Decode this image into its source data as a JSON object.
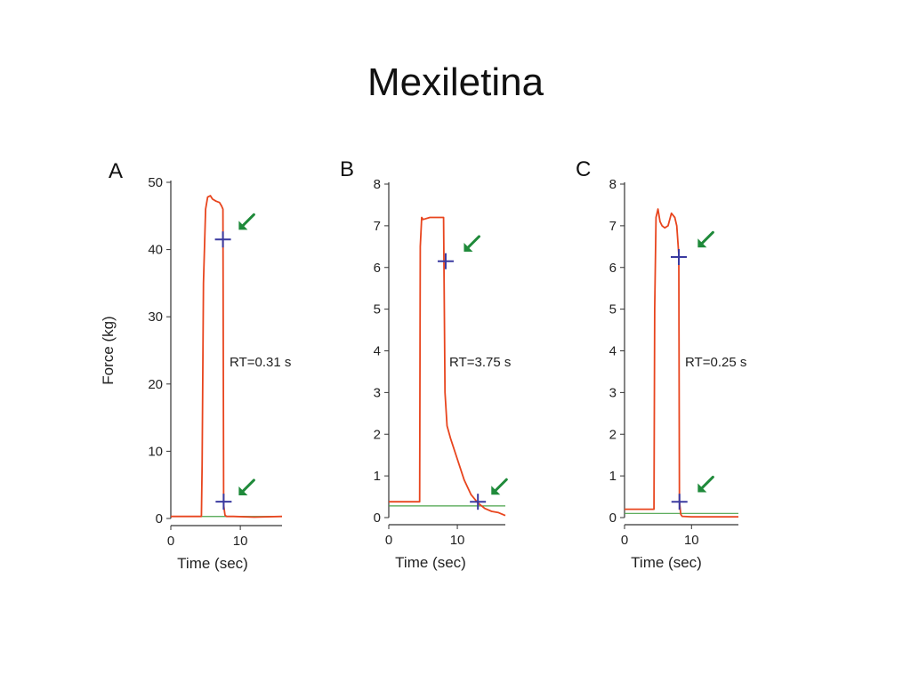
{
  "slide": {
    "title": "Mexiletina"
  },
  "colors": {
    "trace": "#e8451e",
    "baseline": "#4aa34a",
    "marker": "#3a3aa0",
    "arrow": "#1f8a3a",
    "axis": "#333333"
  },
  "chart_data": [
    {
      "type": "line",
      "panel": "A",
      "ylabel": "Force (kg)",
      "xlabel": "Time (sec)",
      "xlim": [
        0,
        16
      ],
      "ylim": [
        0,
        50
      ],
      "xticks": [
        0,
        10
      ],
      "yticks": [
        0,
        10,
        20,
        30,
        40,
        50
      ],
      "annotation": "RT=0.31 s",
      "baseline": 0.3,
      "series": [
        {
          "x": [
            0,
            4.4,
            4.5,
            4.7,
            5.0,
            5.3,
            5.7,
            6.0,
            6.5,
            7.0,
            7.3,
            7.5,
            7.6,
            7.8,
            8.0,
            9,
            12,
            16
          ],
          "y": [
            0.3,
            0.3,
            8,
            35,
            46,
            47.8,
            48,
            47.5,
            47.2,
            47,
            46.5,
            46,
            2,
            0.5,
            0.3,
            0.3,
            0.2,
            0.3
          ]
        }
      ],
      "markers": [
        {
          "x": 7.5,
          "y": 41.5
        },
        {
          "x": 7.6,
          "y": 2.5
        }
      ],
      "arrows": [
        {
          "x": 10.8,
          "y": 44
        },
        {
          "x": 10.8,
          "y": 4.5
        }
      ]
    },
    {
      "type": "line",
      "panel": "B",
      "xlabel": "Time (sec)",
      "xlim": [
        0,
        17
      ],
      "ylim": [
        0,
        8
      ],
      "xticks": [
        0,
        10
      ],
      "yticks": [
        0,
        1,
        2,
        3,
        4,
        5,
        6,
        7,
        8
      ],
      "annotation": "RT=3.75 s",
      "baseline": 0.28,
      "series": [
        {
          "x": [
            0,
            4.5,
            4.6,
            4.8,
            5.0,
            6.0,
            7.0,
            8.0,
            8.2,
            8.5,
            9.0,
            10.0,
            11.0,
            12.0,
            13.0,
            14.0,
            15.0,
            16.0,
            17.0
          ],
          "y": [
            0.38,
            0.38,
            6.5,
            7.2,
            7.15,
            7.2,
            7.2,
            7.2,
            3.0,
            2.2,
            1.9,
            1.4,
            0.9,
            0.55,
            0.35,
            0.22,
            0.15,
            0.12,
            0.05
          ]
        }
      ],
      "markers": [
        {
          "x": 8.3,
          "y": 6.15
        },
        {
          "x": 13.0,
          "y": 0.38
        }
      ],
      "arrows": [
        {
          "x": 12.0,
          "y": 6.55
        },
        {
          "x": 16.0,
          "y": 0.72
        }
      ]
    },
    {
      "type": "line",
      "panel": "C",
      "xlabel": "Time (sec)",
      "xlim": [
        0,
        17
      ],
      "ylim": [
        0,
        8
      ],
      "xticks": [
        0,
        10
      ],
      "yticks": [
        0,
        1,
        2,
        3,
        4,
        5,
        6,
        7,
        8
      ],
      "annotation": "RT=0.25 s",
      "baseline": 0.1,
      "series": [
        {
          "x": [
            0,
            4.4,
            4.5,
            4.7,
            5.0,
            5.3,
            5.6,
            6.0,
            6.5,
            7.0,
            7.5,
            7.8,
            8.1,
            8.2,
            8.4,
            8.6,
            10,
            17
          ],
          "y": [
            0.2,
            0.2,
            5.0,
            7.2,
            7.4,
            7.1,
            7.0,
            6.95,
            7.0,
            7.3,
            7.2,
            7.0,
            6.3,
            0.4,
            0.08,
            0.03,
            0.02,
            0.02
          ]
        }
      ],
      "markers": [
        {
          "x": 8.1,
          "y": 6.25
        },
        {
          "x": 8.2,
          "y": 0.38
        }
      ],
      "arrows": [
        {
          "x": 12.0,
          "y": 6.65
        },
        {
          "x": 12.0,
          "y": 0.78
        }
      ]
    }
  ]
}
